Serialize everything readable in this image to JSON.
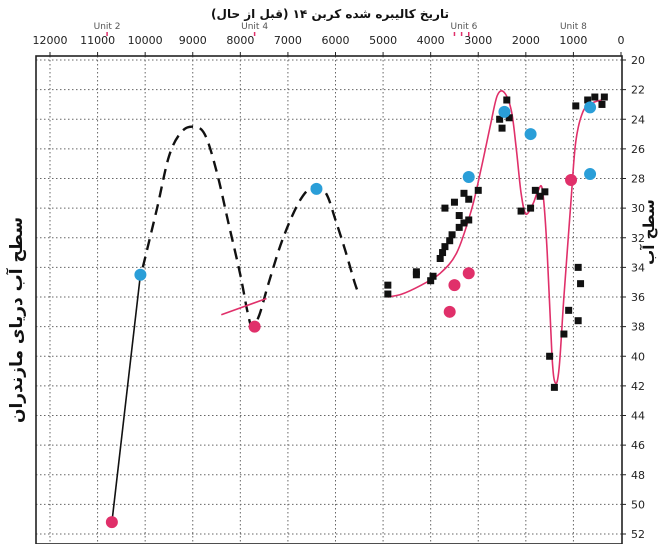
{
  "chart_data": {
    "type": "scatter",
    "title": "تاریخ کالیبره شده کربن ۱۴ (قبل از حال)",
    "ylabel_left": "سطح آب دریای مازندران",
    "ylabel_right": "سطح آب",
    "xlim": [
      12000,
      0
    ],
    "ylim": [
      20,
      52
    ],
    "x_ticks": [
      "12000",
      "11000",
      "10000",
      "9000",
      "8000",
      "7000",
      "6000",
      "5000",
      "4000",
      "3000",
      "2000",
      "1000",
      "0"
    ],
    "y_ticks": [
      "20",
      "22",
      "24",
      "26",
      "28",
      "30",
      "32",
      "34",
      "36",
      "38",
      "40",
      "42",
      "44",
      "46",
      "48",
      "50",
      "52"
    ],
    "grid": true,
    "units": [
      {
        "label": "Unit 2",
        "x": 10800
      },
      {
        "label": "Unit 4",
        "x": 7700
      },
      {
        "label": "Unit 6",
        "x": 3300
      },
      {
        "label": "Unit 8",
        "x": 1000
      }
    ],
    "unit_marks": [
      10800,
      7700,
      3500,
      3350,
      3200
    ],
    "series": [
      {
        "style": "black-squares",
        "color": "#111111",
        "points": [
          [
            4900,
            35.8
          ],
          [
            4900,
            35.2
          ],
          [
            4300,
            34.3
          ],
          [
            4300,
            34.5
          ],
          [
            3950,
            34.6
          ],
          [
            4000,
            34.9
          ],
          [
            3800,
            33.4
          ],
          [
            3750,
            33.0
          ],
          [
            3700,
            32.6
          ],
          [
            3600,
            32.2
          ],
          [
            3550,
            31.8
          ],
          [
            3400,
            31.3
          ],
          [
            3300,
            31.0
          ],
          [
            3200,
            30.8
          ],
          [
            3400,
            30.5
          ],
          [
            3700,
            30.0
          ],
          [
            3500,
            29.6
          ],
          [
            3200,
            29.4
          ],
          [
            3300,
            29.0
          ],
          [
            3000,
            28.8
          ],
          [
            2500,
            24.6
          ],
          [
            2550,
            24.0
          ],
          [
            2400,
            22.7
          ],
          [
            2350,
            23.9
          ],
          [
            2100,
            30.2
          ],
          [
            1900,
            30.0
          ],
          [
            1800,
            28.8
          ],
          [
            1700,
            29.2
          ],
          [
            1600,
            28.9
          ],
          [
            1500,
            40.0
          ],
          [
            1400,
            42.1
          ],
          [
            1200,
            38.5
          ],
          [
            1100,
            36.9
          ],
          [
            900,
            34.0
          ],
          [
            850,
            35.1
          ],
          [
            900,
            37.6
          ],
          [
            950,
            23.1
          ],
          [
            700,
            22.7
          ],
          [
            550,
            22.5
          ],
          [
            400,
            23.0
          ],
          [
            350,
            22.5
          ]
        ]
      },
      {
        "style": "pink-dots",
        "color": "#e0306a",
        "points": [
          [
            10700,
            51.2
          ],
          [
            7700,
            38.0
          ],
          [
            3600,
            37.0
          ],
          [
            3500,
            35.2
          ],
          [
            3200,
            34.4
          ],
          [
            1050,
            28.1
          ]
        ]
      },
      {
        "style": "blue-dots",
        "color": "#2a9ed8",
        "points": [
          [
            10100,
            34.5
          ],
          [
            6400,
            28.7
          ],
          [
            3200,
            27.9
          ],
          [
            2450,
            23.5
          ],
          [
            1900,
            25.0
          ],
          [
            650,
            23.2
          ],
          [
            650,
            27.7
          ]
        ]
      },
      {
        "style": "solid-black-line",
        "color": "#111111",
        "points": [
          [
            10700,
            51.2
          ],
          [
            10100,
            34.5
          ]
        ]
      },
      {
        "style": "dashed-black-curve",
        "color": "#111111",
        "points": [
          [
            10050,
            34.0
          ],
          [
            9750,
            30.0
          ],
          [
            9500,
            26.5
          ],
          [
            9250,
            24.9
          ],
          [
            9000,
            24.5
          ],
          [
            8750,
            25.0
          ],
          [
            8500,
            27.5
          ],
          [
            8250,
            31.0
          ],
          [
            8000,
            34.5
          ],
          [
            7850,
            37.0
          ],
          [
            7750,
            38.0
          ],
          [
            7600,
            37.2
          ],
          [
            7400,
            35.0
          ],
          [
            7100,
            32.0
          ],
          [
            6750,
            29.5
          ],
          [
            6450,
            28.5
          ],
          [
            6200,
            29.0
          ],
          [
            6000,
            30.8
          ],
          [
            5800,
            32.8
          ],
          [
            5600,
            35.0
          ],
          [
            5500,
            35.9
          ]
        ]
      },
      {
        "style": "short-pink-line",
        "color": "#e0306a",
        "points": [
          [
            8400,
            37.2
          ],
          [
            7450,
            36.1
          ]
        ]
      },
      {
        "style": "pink-curve",
        "color": "#e0306a",
        "points": [
          [
            4900,
            36.0
          ],
          [
            4600,
            35.8
          ],
          [
            4200,
            35.2
          ],
          [
            3800,
            34.4
          ],
          [
            3450,
            33.0
          ],
          [
            3150,
            30.2
          ],
          [
            2950,
            27.5
          ],
          [
            2750,
            24.5
          ],
          [
            2600,
            22.4
          ],
          [
            2450,
            22.2
          ],
          [
            2300,
            23.5
          ],
          [
            2200,
            26.0
          ],
          [
            2100,
            29.0
          ],
          [
            2000,
            30.4
          ],
          [
            1850,
            29.7
          ],
          [
            1750,
            28.9
          ],
          [
            1650,
            28.8
          ],
          [
            1550,
            33.0
          ],
          [
            1450,
            40.0
          ],
          [
            1380,
            41.8
          ],
          [
            1300,
            40.8
          ],
          [
            1200,
            36.0
          ],
          [
            1050,
            29.5
          ],
          [
            950,
            25.5
          ],
          [
            800,
            23.5
          ],
          [
            600,
            22.9
          ],
          [
            400,
            22.7
          ]
        ]
      }
    ]
  }
}
